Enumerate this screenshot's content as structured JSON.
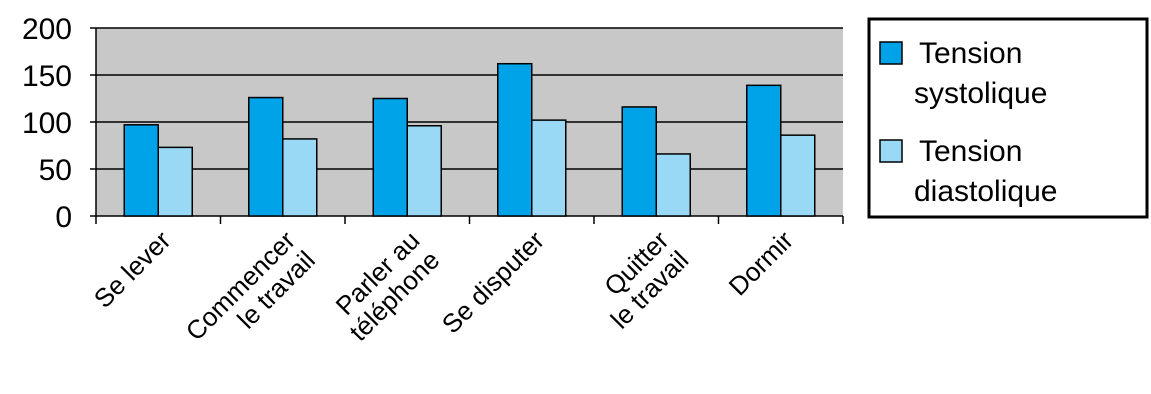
{
  "chart_data": {
    "type": "bar",
    "categories": [
      [
        "Se lever"
      ],
      [
        "Commencer",
        "le travail"
      ],
      [
        "Parler au",
        "téléphone"
      ],
      [
        "Se disputer"
      ],
      [
        "Quitter",
        "le travail"
      ],
      [
        "Dormir"
      ]
    ],
    "series": [
      {
        "name": [
          "Tension",
          "systolique"
        ],
        "values": [
          97,
          126,
          125,
          162,
          116,
          139
        ]
      },
      {
        "name": [
          "Tension",
          "diastolique"
        ],
        "values": [
          73,
          82,
          96,
          102,
          66,
          86
        ]
      }
    ],
    "ylim": [
      0,
      200
    ],
    "yticks": [
      0,
      50,
      100,
      150,
      200
    ],
    "grid": true,
    "legend_position": "right",
    "colors": {
      "plot_background": "#c8c8c8",
      "systolique": "#00a2e8",
      "diastolique": "#99d9f6",
      "outline": "#000000"
    }
  }
}
